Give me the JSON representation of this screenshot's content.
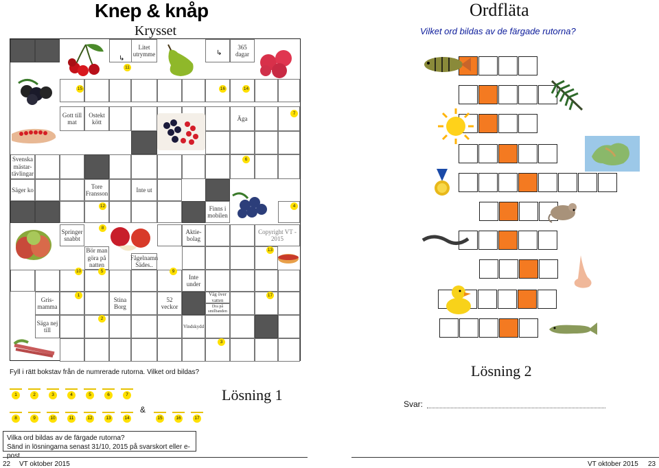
{
  "left_page": {
    "title": "Knep & knåp",
    "subtitle": "Krysset",
    "clues": {
      "litet_utrymme": "Litet utrymme",
      "dagar": "365 dagar",
      "gott_till_mat": "Gott till mat",
      "ostekt_kott": "Ostekt kött",
      "aga": "Äga",
      "svenska": "Svenska mästar-tävlingar",
      "sager_ko": "Säger ko",
      "tore": "Tore Fransson",
      "inte_ut": "Inte ut",
      "finns_i_mobilen": "Finns i mobilen",
      "springer_snabbt": "Springer snabbt",
      "aktiebolag": "Aktie-bolag",
      "copyright": "Copyright VT - 2015",
      "bor_man": "Bör man göra på natten",
      "fagelnamn": "Fågelnamn Sädes..",
      "inte_under": "Inte under",
      "grismamma": "Gris-mamma",
      "stina_borg": "Stina Borg",
      "veckor": "52 veckor",
      "vag_over": "Väg över vatten",
      "dra_pa": "Dra på smilbanden",
      "saga_nej": "Säga nej till",
      "vindskydd": "Vindskydd"
    },
    "numbers": [
      "1",
      "2",
      "3",
      "4",
      "5",
      "6",
      "7",
      "8",
      "9",
      "10",
      "11",
      "12",
      "13",
      "14",
      "15",
      "16",
      "17"
    ],
    "instruction": "Fyll i rätt bokstav från de numrerade rutorna. Vilket ord bildas?",
    "solution_row1": [
      "1",
      "2",
      "3",
      "4",
      "5",
      "6",
      "7"
    ],
    "solution_row2": [
      "8",
      "9",
      "10",
      "11",
      "12",
      "13",
      "14"
    ],
    "solution_row3": [
      "15",
      "16",
      "17"
    ],
    "ampersand": "&",
    "solution1_label": "Lösning 1",
    "footer_box_line1": "Vilka ord bildas av de färgade rutorna?",
    "footer_box_line2": "Sänd in lösningarna senast 31/10, 2015 på svarskort eller e-post.",
    "page_number": "22",
    "footer_text": "VT oktober 2015"
  },
  "right_page": {
    "title": "Ordfläta",
    "question": "Vilket ord bildas av de färgade rutorna?",
    "solution2_label": "Lösning 2",
    "svar_label": "Svar:",
    "footer_text": "VT oktober 2015",
    "page_number": "23",
    "rows": [
      {
        "icon": "fish-perch-icon",
        "boxes": 4,
        "highlight": 0
      },
      {
        "icon": "fir-branch-icon",
        "boxes": 5,
        "highlight": 1
      },
      {
        "icon": "sun-icon",
        "boxes": 4,
        "highlight": 1
      },
      {
        "icon": "map-icon",
        "boxes": 5,
        "highlight": 2
      },
      {
        "icon": "medal-icon",
        "boxes": 8,
        "highlight": 3
      },
      {
        "icon": "mouse-icon",
        "boxes": 4,
        "highlight": 1
      },
      {
        "icon": "eel-icon",
        "boxes": 5,
        "highlight": 2
      },
      {
        "icon": "nose-icon",
        "boxes": 4,
        "highlight": 2
      },
      {
        "icon": "duck-icon",
        "boxes": 6,
        "highlight": 4
      },
      {
        "icon": "pike-icon",
        "boxes": 5,
        "highlight": 3
      }
    ]
  },
  "colors": {
    "highlight": "#f47a21",
    "number_badge": "#ffe000",
    "dark_cell": "#555555",
    "question_blue": "#0a1a9a"
  }
}
